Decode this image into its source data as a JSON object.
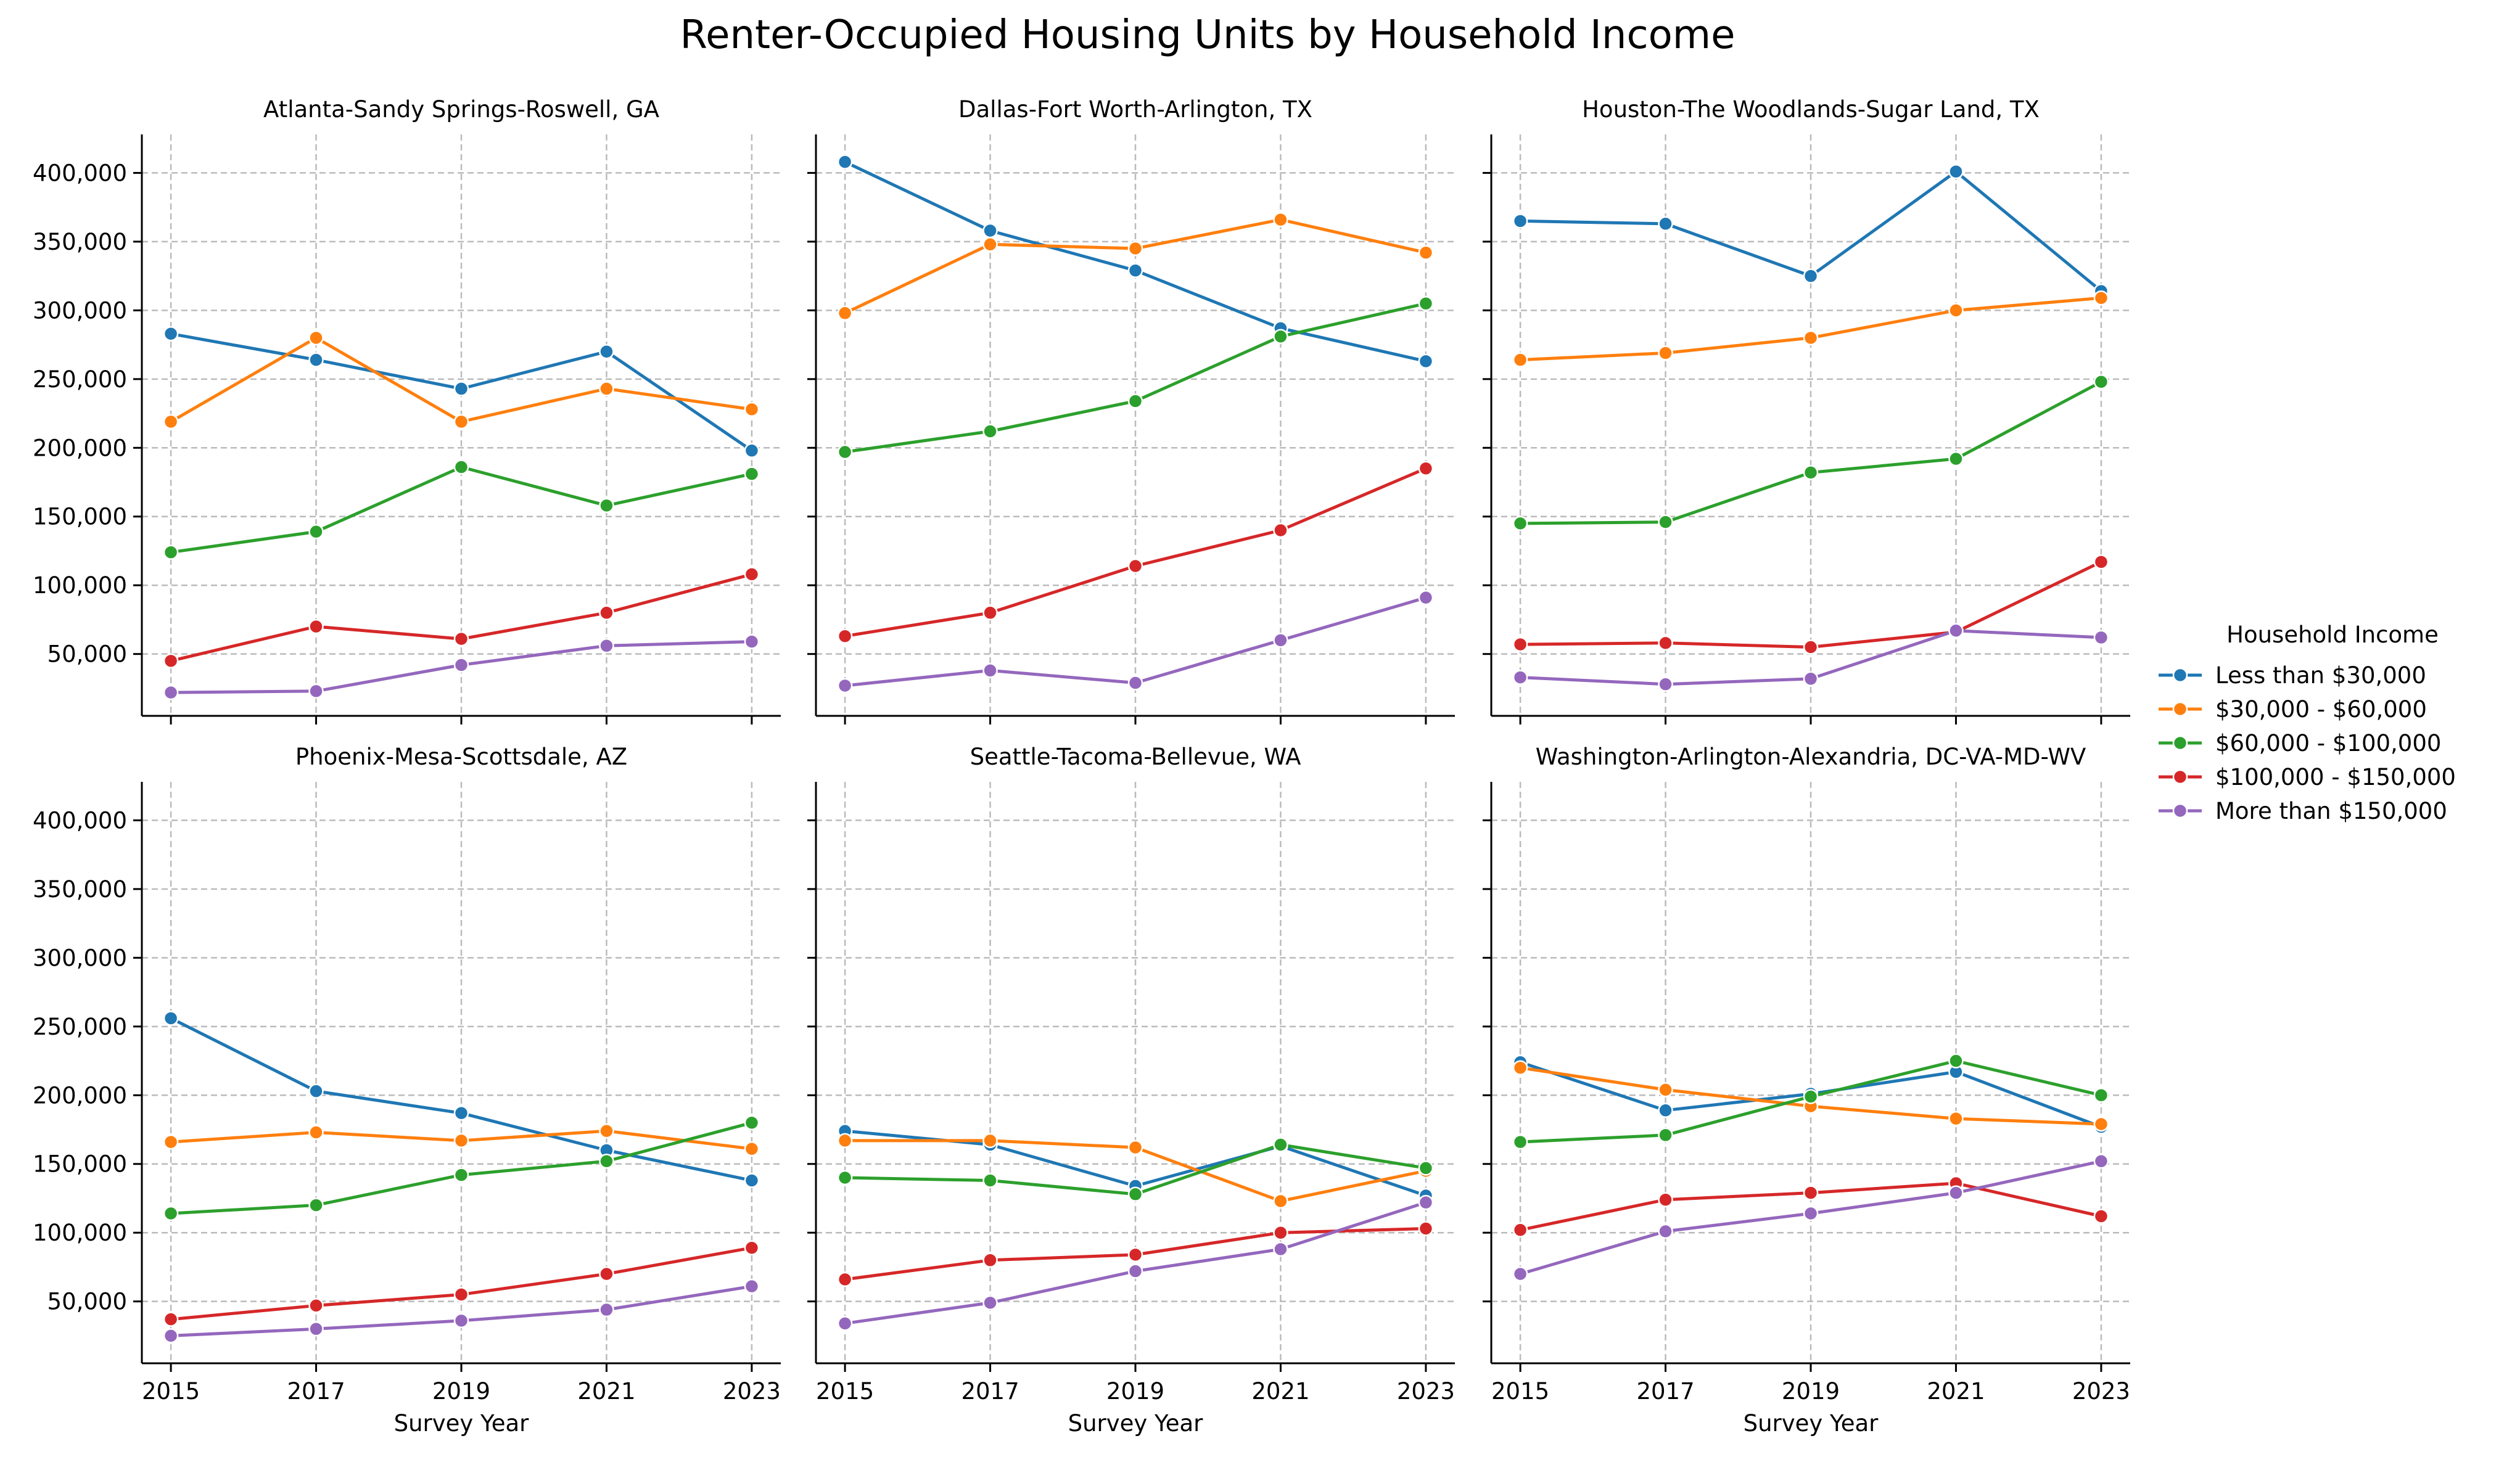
{
  "title": "Renter-Occupied Housing Units by Household Income",
  "legend": {
    "title": "Household Income",
    "placement": "right"
  },
  "chart_data": {
    "type": "line",
    "layout": "2x3 facet grid, shared axes",
    "xlabel": "Survey Year",
    "ylabel": "",
    "xlim": [
      2014.6,
      2023.4
    ],
    "ylim": [
      5000,
      428000
    ],
    "x": [
      2015,
      2017,
      2019,
      2021,
      2023
    ],
    "x_ticks": [
      "2015",
      "2017",
      "2019",
      "2021",
      "2023"
    ],
    "y_ticks": [
      50000,
      100000,
      150000,
      200000,
      250000,
      300000,
      350000,
      400000
    ],
    "y_tick_labels": [
      "50,000",
      "100,000",
      "150,000",
      "200,000",
      "250,000",
      "300,000",
      "350,000",
      "400,000"
    ],
    "grid": true,
    "series_meta": [
      {
        "name": "Less than $30,000",
        "color": "#1f77b4"
      },
      {
        "name": "$30,000 - $60,000",
        "color": "#ff7f0e"
      },
      {
        "name": "$60,000 - $100,000",
        "color": "#2ca02c"
      },
      {
        "name": "$100,000 - $150,000",
        "color": "#d62728"
      },
      {
        "name": "More than $150,000",
        "color": "#9467bd"
      }
    ],
    "panels": [
      {
        "title": "Atlanta-Sandy Springs-Roswell, GA",
        "series": [
          {
            "name": "Less than $30,000",
            "values": [
              283000,
              264000,
              243000,
              270000,
              198000
            ]
          },
          {
            "name": "$30,000 - $60,000",
            "values": [
              219000,
              280000,
              219000,
              243000,
              228000
            ]
          },
          {
            "name": "$60,000 - $100,000",
            "values": [
              124000,
              139000,
              186000,
              158000,
              181000
            ]
          },
          {
            "name": "$100,000 - $150,000",
            "values": [
              45000,
              70000,
              61000,
              80000,
              108000
            ]
          },
          {
            "name": "More than $150,000",
            "values": [
              22000,
              23000,
              42000,
              56000,
              59000
            ]
          }
        ]
      },
      {
        "title": "Dallas-Fort Worth-Arlington, TX",
        "series": [
          {
            "name": "Less than $30,000",
            "values": [
              408000,
              358000,
              329000,
              287000,
              263000
            ]
          },
          {
            "name": "$30,000 - $60,000",
            "values": [
              298000,
              348000,
              345000,
              366000,
              342000
            ]
          },
          {
            "name": "$60,000 - $100,000",
            "values": [
              197000,
              212000,
              234000,
              281000,
              305000
            ]
          },
          {
            "name": "$100,000 - $150,000",
            "values": [
              63000,
              80000,
              114000,
              140000,
              185000
            ]
          },
          {
            "name": "More than $150,000",
            "values": [
              27000,
              38000,
              29000,
              60000,
              91000
            ]
          }
        ]
      },
      {
        "title": "Houston-The Woodlands-Sugar Land, TX",
        "series": [
          {
            "name": "Less than $30,000",
            "values": [
              365000,
              363000,
              325000,
              401000,
              314000
            ]
          },
          {
            "name": "$30,000 - $60,000",
            "values": [
              264000,
              269000,
              280000,
              300000,
              309000
            ]
          },
          {
            "name": "$60,000 - $100,000",
            "values": [
              145000,
              146000,
              182000,
              192000,
              248000
            ]
          },
          {
            "name": "$100,000 - $150,000",
            "values": [
              57000,
              58000,
              55000,
              66000,
              117000
            ]
          },
          {
            "name": "More than $150,000",
            "values": [
              33000,
              28000,
              32000,
              67000,
              62000
            ]
          }
        ]
      },
      {
        "title": "Phoenix-Mesa-Scottsdale, AZ",
        "series": [
          {
            "name": "Less than $30,000",
            "values": [
              256000,
              203000,
              187000,
              160000,
              138000
            ]
          },
          {
            "name": "$30,000 - $60,000",
            "values": [
              166000,
              173000,
              167000,
              174000,
              161000
            ]
          },
          {
            "name": "$60,000 - $100,000",
            "values": [
              114000,
              120000,
              142000,
              152000,
              180000
            ]
          },
          {
            "name": "$100,000 - $150,000",
            "values": [
              37000,
              47000,
              55000,
              70000,
              89000
            ]
          },
          {
            "name": "More than $150,000",
            "values": [
              25000,
              30000,
              36000,
              44000,
              61000
            ]
          }
        ]
      },
      {
        "title": "Seattle-Tacoma-Bellevue, WA",
        "series": [
          {
            "name": "Less than $30,000",
            "values": [
              174000,
              164000,
              134000,
              163000,
              127000
            ]
          },
          {
            "name": "$30,000 - $60,000",
            "values": [
              167000,
              167000,
              162000,
              123000,
              145000
            ]
          },
          {
            "name": "$60,000 - $100,000",
            "values": [
              140000,
              138000,
              128000,
              164000,
              147000
            ]
          },
          {
            "name": "$100,000 - $150,000",
            "values": [
              66000,
              80000,
              84000,
              100000,
              103000
            ]
          },
          {
            "name": "More than $150,000",
            "values": [
              34000,
              49000,
              72000,
              88000,
              122000
            ]
          }
        ]
      },
      {
        "title": "Washington-Arlington-Alexandria, DC-VA-MD-WV",
        "series": [
          {
            "name": "Less than $30,000",
            "values": [
              224000,
              189000,
              201000,
              217000,
              177000
            ]
          },
          {
            "name": "$30,000 - $60,000",
            "values": [
              220000,
              204000,
              192000,
              183000,
              179000
            ]
          },
          {
            "name": "$60,000 - $100,000",
            "values": [
              166000,
              171000,
              199000,
              225000,
              200000
            ]
          },
          {
            "name": "$100,000 - $150,000",
            "values": [
              102000,
              124000,
              129000,
              136000,
              112000
            ]
          },
          {
            "name": "More than $150,000",
            "values": [
              70000,
              101000,
              114000,
              129000,
              152000
            ]
          }
        ]
      }
    ]
  }
}
